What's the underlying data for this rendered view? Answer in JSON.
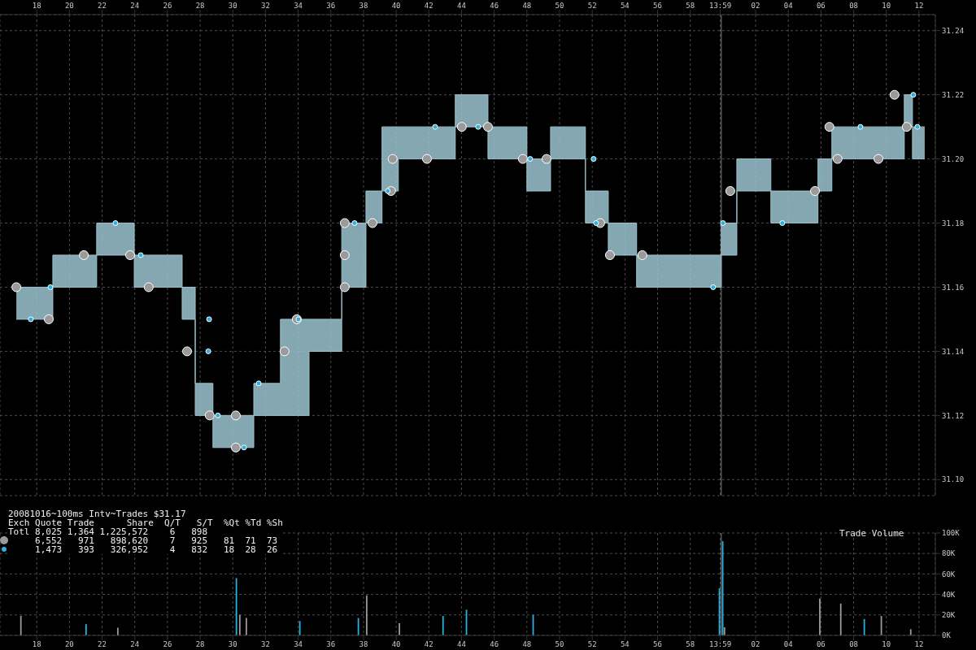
{
  "chart_data": [
    {
      "type": "step",
      "title": "20081016~100ms Intv~Trades $31.17",
      "annotations": [
        "Exch Quote Trade      Share  Q/T   S/T  %Qt %Td %Sh",
        "Totl 8,025 1,364 1,225,572    6   898",
        "     6,552   971   898,620    7   925   81  71  73",
        "     1,473   393   326,952    4   832   18  28  26"
      ],
      "x": [
        "2008-10-16T13:16:45",
        "2008-10-16T13:18:59",
        "2008-10-16T13:21:40",
        "2008-10-16T13:23:58",
        "2008-10-16T13:26:54",
        "2008-10-16T13:27:42",
        "2008-10-16T13:28:47",
        "2008-10-16T13:31:17",
        "2008-10-16T13:32:55",
        "2008-10-16T13:34:40",
        "2008-10-16T13:36:40",
        "2008-10-16T13:38:09",
        "2008-10-16T13:39:08",
        "2008-10-16T13:40:08",
        "2008-10-16T13:43:37",
        "2008-10-16T13:45:37",
        "2008-10-16T13:48:00",
        "2008-10-16T13:49:27",
        "2008-10-16T13:51:35",
        "2008-10-16T13:52:59",
        "2008-10-16T13:54:43",
        "2008-10-16T13:59:54",
        "2008-10-16T14:00:51",
        "2008-10-16T14:02:56",
        "2008-10-16T14:05:49",
        "2008-10-16T14:06:40",
        "2008-10-16T14:11:06",
        "2008-10-16T14:11:36",
        "2008-10-16T14:12:21"
      ],
      "series": [
        {
          "color": "#9cc4d0",
          "marker": "none",
          "values": [
            31.15,
            31.16,
            31.17,
            31.16,
            31.15,
            31.12,
            31.11,
            31.12,
            31.12,
            31.14,
            31.16,
            31.18,
            31.19,
            31.2,
            31.21,
            31.2,
            31.19,
            31.2,
            31.18,
            31.17,
            31.16,
            31.17,
            31.19,
            31.18,
            31.19,
            31.2,
            31.21,
            31.2,
            31.2
          ]
        },
        {
          "color": "#9cc4d0",
          "marker": "none",
          "values": [
            31.16,
            31.17,
            31.18,
            31.17,
            31.16,
            31.13,
            31.12,
            31.13,
            31.15,
            31.15,
            31.18,
            31.19,
            31.21,
            31.21,
            31.22,
            31.21,
            31.2,
            31.21,
            31.19,
            31.18,
            31.17,
            31.18,
            31.2,
            31.19,
            31.2,
            31.21,
            31.22,
            31.21,
            31.21
          ],
          "lower": [
            31.15,
            31.16,
            31.17,
            31.16,
            31.15,
            31.12,
            31.11,
            31.12,
            31.12,
            31.14,
            31.16,
            31.18,
            31.19,
            31.2,
            31.21,
            31.2,
            31.19,
            31.2,
            31.18,
            31.17,
            31.16,
            31.17,
            31.19,
            31.18,
            31.19,
            31.2,
            31.21,
            31.2,
            31.2
          ],
          "upper": [
            31.16,
            31.17,
            31.18,
            31.17,
            31.16,
            31.13,
            31.12,
            31.13,
            31.15,
            31.15,
            31.18,
            31.19,
            31.21,
            31.21,
            31.22,
            31.21,
            31.2,
            31.21,
            31.19,
            31.18,
            31.17,
            31.18,
            31.2,
            31.19,
            31.2,
            31.21,
            31.22,
            31.21,
            31.21
          ]
        },
        {
          "type": "scatter",
          "marker": "circle",
          "color": "#9a9a9a",
          "x": [
            "2008-10-16T13:16:45",
            "2008-10-16T13:18:44",
            "2008-10-16T13:20:53",
            "2008-10-16T13:23:43",
            "2008-10-16T13:24:51",
            "2008-10-16T13:27:12",
            "2008-10-16T13:28:35",
            "2008-10-16T13:30:11",
            "2008-10-16T13:30:11",
            "2008-10-16T13:33:10",
            "2008-10-16T13:33:55",
            "2008-10-16T13:36:51",
            "2008-10-16T13:36:51",
            "2008-10-16T13:36:51",
            "2008-10-16T13:38:33",
            "2008-10-16T13:39:41",
            "2008-10-16T13:39:47",
            "2008-10-16T13:41:53",
            "2008-10-16T13:44:01",
            "2008-10-16T13:45:37",
            "2008-10-16T13:47:45",
            "2008-10-16T13:49:12",
            "2008-10-16T13:52:29",
            "2008-10-16T13:53:05",
            "2008-10-16T13:55:04",
            "2008-10-16T14:00:27",
            "2008-10-16T14:05:38",
            "2008-10-16T14:06:31",
            "2008-10-16T14:07:01",
            "2008-10-16T14:09:31",
            "2008-10-16T14:10:30",
            "2008-10-16T14:11:15"
          ],
          "values": [
            31.16,
            31.15,
            31.17,
            31.17,
            31.16,
            31.14,
            31.12,
            31.12,
            31.11,
            31.14,
            31.15,
            31.16,
            31.17,
            31.18,
            31.18,
            31.19,
            31.2,
            31.2,
            31.21,
            31.21,
            31.2,
            31.2,
            31.18,
            31.17,
            31.17,
            31.19,
            31.19,
            31.21,
            31.2,
            31.2,
            31.22,
            31.21
          ]
        },
        {
          "type": "scatter",
          "marker": "circle",
          "color": "#2bb0e0",
          "x": [
            "2008-10-16T13:17:38",
            "2008-10-16T13:18:50",
            "2008-10-16T13:22:49",
            "2008-10-16T13:24:22",
            "2008-10-16T13:28:30",
            "2008-10-16T13:28:33",
            "2008-10-16T13:29:05",
            "2008-10-16T13:30:41",
            "2008-10-16T13:31:35",
            "2008-10-16T13:34:01",
            "2008-10-16T13:37:27",
            "2008-10-16T13:39:29",
            "2008-10-16T13:42:23",
            "2008-10-16T13:45:01",
            "2008-10-16T13:48:12",
            "2008-10-16T13:52:14",
            "2008-10-16T13:52:05",
            "2008-10-16T13:59:24",
            "2008-10-16T14:00:00",
            "2008-10-16T14:03:38",
            "2008-10-16T14:08:25",
            "2008-10-16T14:11:39",
            "2008-10-16T14:11:54"
          ],
          "values": [
            31.15,
            31.16,
            31.18,
            31.17,
            31.14,
            31.15,
            31.12,
            31.11,
            31.13,
            31.15,
            31.18,
            31.19,
            31.21,
            31.21,
            31.2,
            31.18,
            31.2,
            31.16,
            31.18,
            31.18,
            31.21,
            31.22,
            31.21
          ]
        }
      ],
      "xlim": [
        "2008-10-16T13:15:45",
        "2008-10-16T14:13:00"
      ],
      "xticks": [
        {
          "value": "2008-10-16T13:18",
          "label": "18"
        },
        {
          "value": "2008-10-16T13:20",
          "label": "20"
        },
        {
          "value": "2008-10-16T13:22",
          "label": "22"
        },
        {
          "value": "2008-10-16T13:24",
          "label": "24"
        },
        {
          "value": "2008-10-16T13:26",
          "label": "26"
        },
        {
          "value": "2008-10-16T13:28",
          "label": "28"
        },
        {
          "value": "2008-10-16T13:30",
          "label": "30"
        },
        {
          "value": "2008-10-16T13:32",
          "label": "32"
        },
        {
          "value": "2008-10-16T13:34",
          "label": "34"
        },
        {
          "value": "2008-10-16T13:36",
          "label": "36"
        },
        {
          "value": "2008-10-16T13:38",
          "label": "38"
        },
        {
          "value": "2008-10-16T13:40",
          "label": "40"
        },
        {
          "value": "2008-10-16T13:42",
          "label": "42"
        },
        {
          "value": "2008-10-16T13:44",
          "label": "44"
        },
        {
          "value": "2008-10-16T13:46",
          "label": "46"
        },
        {
          "value": "2008-10-16T13:48",
          "label": "48"
        },
        {
          "value": "2008-10-16T13:50",
          "label": "50"
        },
        {
          "value": "2008-10-16T13:52",
          "label": "52"
        },
        {
          "value": "2008-10-16T13:54",
          "label": "54"
        },
        {
          "value": "2008-10-16T13:56",
          "label": "56"
        },
        {
          "value": "2008-10-16T13:58",
          "label": "58"
        },
        {
          "value": "2008-10-16T13:59:50",
          "label": "13:59"
        },
        {
          "value": "2008-10-16T14:02",
          "label": "02"
        },
        {
          "value": "2008-10-16T14:04",
          "label": "04"
        },
        {
          "value": "2008-10-16T14:06",
          "label": "06"
        },
        {
          "value": "2008-10-16T14:08",
          "label": "08"
        },
        {
          "value": "2008-10-16T14:10",
          "label": "10"
        },
        {
          "value": "2008-10-16T14:12",
          "label": "12"
        }
      ],
      "ylim": [
        31.095,
        31.245
      ],
      "yticks": [
        {
          "value": 31.1,
          "label": "31.10"
        },
        {
          "value": 31.12,
          "label": "31.12"
        },
        {
          "value": 31.14,
          "label": "31.14"
        },
        {
          "value": 31.16,
          "label": "31.16"
        },
        {
          "value": 31.18,
          "label": "31.18"
        },
        {
          "value": 31.2,
          "label": "31.20"
        },
        {
          "value": 31.22,
          "label": "31.22"
        },
        {
          "value": 31.24,
          "label": "31.24"
        }
      ],
      "grid": true,
      "ref_lines": [
        {
          "axis": "x",
          "value": "2008-10-16T13:59:54",
          "color": "#808080"
        }
      ]
    },
    {
      "type": "bar",
      "title": "Trade Volume",
      "series": [
        {
          "color": "#9a9a9a",
          "x": [
            "2008-10-16T13:17:05",
            "2008-10-16T13:23:01",
            "2008-10-16T13:30:29",
            "2008-10-16T13:30:53",
            "2008-10-16T13:38:15",
            "2008-10-16T13:40:15",
            "2008-10-16T14:00:09",
            "2008-10-16T14:05:59",
            "2008-10-16T14:07:16",
            "2008-10-16T14:09:45",
            "2008-10-16T14:11:33"
          ],
          "values": [
            19000,
            7500,
            20000,
            17000,
            39000,
            12000,
            8000,
            36000,
            31000,
            19000,
            6000
          ]
        },
        {
          "color": "#2bb0e0",
          "x": [
            "2008-10-16T13:20:59",
            "2008-10-16T13:30:11",
            "2008-10-16T13:34:04",
            "2008-10-16T13:37:39",
            "2008-10-16T13:42:50",
            "2008-10-16T13:44:16",
            "2008-10-16T13:48:21",
            "2008-10-16T13:59:45",
            "2008-10-16T13:59:57",
            "2008-10-16T14:08:37"
          ],
          "values": [
            11000,
            56000,
            14000,
            17000,
            19000,
            25000,
            20000,
            46000,
            92000,
            16000
          ]
        }
      ],
      "xlim": [
        "2008-10-16T13:15:45",
        "2008-10-16T14:13:00"
      ],
      "xticks": [
        {
          "value": "2008-10-16T13:18",
          "label": "18"
        },
        {
          "value": "2008-10-16T13:20",
          "label": "20"
        },
        {
          "value": "2008-10-16T13:22",
          "label": "22"
        },
        {
          "value": "2008-10-16T13:24",
          "label": "24"
        },
        {
          "value": "2008-10-16T13:26",
          "label": "26"
        },
        {
          "value": "2008-10-16T13:28",
          "label": "28"
        },
        {
          "value": "2008-10-16T13:30",
          "label": "30"
        },
        {
          "value": "2008-10-16T13:32",
          "label": "32"
        },
        {
          "value": "2008-10-16T13:34",
          "label": "34"
        },
        {
          "value": "2008-10-16T13:36",
          "label": "36"
        },
        {
          "value": "2008-10-16T13:38",
          "label": "38"
        },
        {
          "value": "2008-10-16T13:40",
          "label": "40"
        },
        {
          "value": "2008-10-16T13:42",
          "label": "42"
        },
        {
          "value": "2008-10-16T13:44",
          "label": "44"
        },
        {
          "value": "2008-10-16T13:46",
          "label": "46"
        },
        {
          "value": "2008-10-16T13:48",
          "label": "48"
        },
        {
          "value": "2008-10-16T13:50",
          "label": "50"
        },
        {
          "value": "2008-10-16T13:52",
          "label": "52"
        },
        {
          "value": "2008-10-16T13:54",
          "label": "54"
        },
        {
          "value": "2008-10-16T13:56",
          "label": "56"
        },
        {
          "value": "2008-10-16T13:58",
          "label": "58"
        },
        {
          "value": "2008-10-16T13:59:50",
          "label": "13:59"
        },
        {
          "value": "2008-10-16T14:02",
          "label": "02"
        },
        {
          "value": "2008-10-16T14:04",
          "label": "04"
        },
        {
          "value": "2008-10-16T14:06",
          "label": "06"
        },
        {
          "value": "2008-10-16T14:08",
          "label": "08"
        },
        {
          "value": "2008-10-16T14:10",
          "label": "10"
        },
        {
          "value": "2008-10-16T14:12",
          "label": "12"
        }
      ],
      "ylim": [
        0,
        100000
      ],
      "yticks": [
        {
          "value": 0,
          "label": "0K"
        },
        {
          "value": 20000,
          "label": "20K"
        },
        {
          "value": 40000,
          "label": "40K"
        },
        {
          "value": 60000,
          "label": "60K"
        },
        {
          "value": 80000,
          "label": "80K"
        },
        {
          "value": 100000,
          "label": "100K"
        }
      ],
      "grid": true,
      "ref_lines": [
        {
          "axis": "x",
          "value": "2008-10-16T13:59:54",
          "color": "#808080"
        }
      ]
    }
  ]
}
